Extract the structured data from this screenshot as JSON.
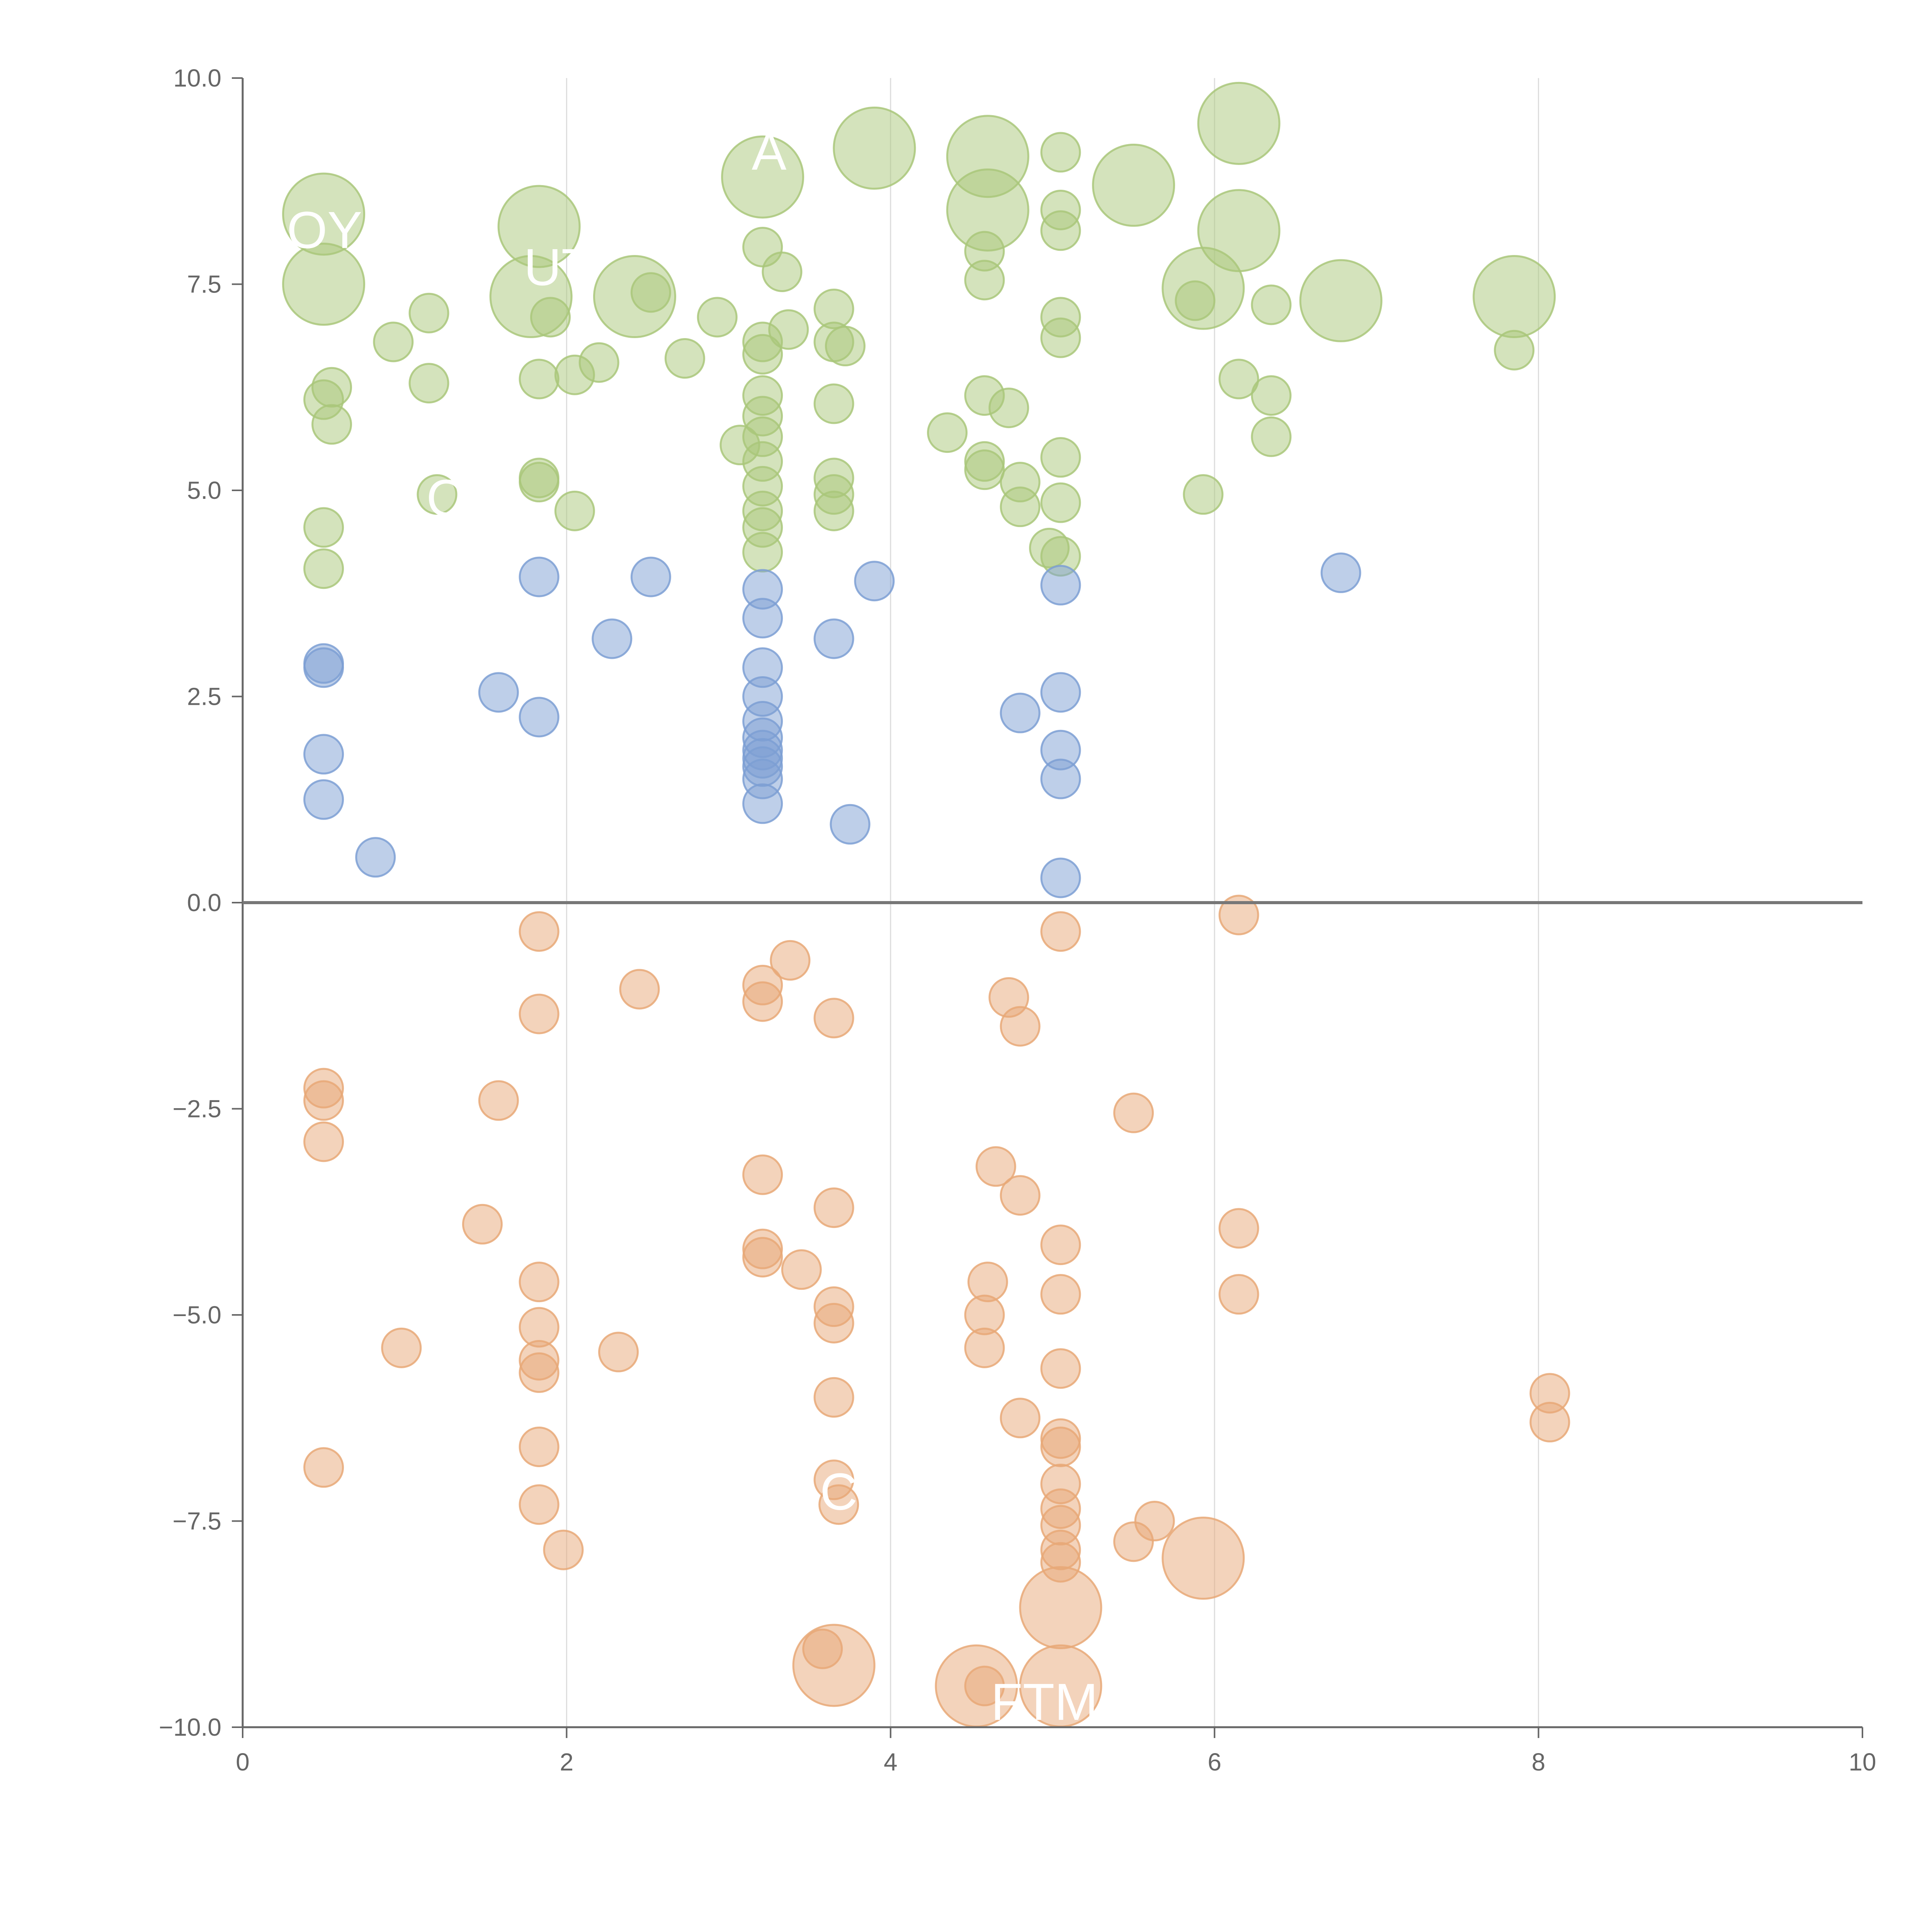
{
  "chart_data": {
    "type": "scatter",
    "title": "",
    "xlabel": "",
    "ylabel": "",
    "xlim": [
      0,
      10
    ],
    "ylim": [
      -10,
      10
    ],
    "x_ticks": [
      "0",
      "2",
      "4",
      "6",
      "8",
      "10"
    ],
    "y_ticks": [
      "10.0",
      "7.5",
      "5.0",
      "2.5",
      "0.0",
      "−2.5",
      "−5.0",
      "−7.5",
      "−10.0"
    ],
    "x_gridlines": [
      2,
      4,
      6,
      8
    ],
    "zero_line": 0,
    "series": [
      {
        "color": "#a9c77a",
        "points": [
          [
            0.5,
            8.35,
            2
          ],
          [
            0.5,
            7.5,
            2
          ],
          [
            0.55,
            6.25,
            1
          ],
          [
            0.5,
            6.1,
            1
          ],
          [
            0.55,
            5.8,
            1
          ],
          [
            0.5,
            4.55,
            1
          ],
          [
            0.5,
            4.05,
            1
          ],
          [
            0.93,
            6.8,
            1
          ],
          [
            1.15,
            7.15,
            1
          ],
          [
            1.15,
            6.3,
            1
          ],
          [
            1.2,
            4.95,
            1
          ],
          [
            1.83,
            8.2,
            2
          ],
          [
            1.78,
            7.35,
            2
          ],
          [
            1.9,
            7.1,
            1
          ],
          [
            1.83,
            6.35,
            1
          ],
          [
            1.83,
            5.15,
            1
          ],
          [
            1.83,
            5.1,
            1
          ],
          [
            2.05,
            6.4,
            1
          ],
          [
            2.05,
            4.75,
            1
          ],
          [
            2.2,
            6.55,
            1
          ],
          [
            2.42,
            7.35,
            2
          ],
          [
            2.52,
            7.4,
            1
          ],
          [
            2.73,
            6.6,
            1
          ],
          [
            2.93,
            7.1,
            1
          ],
          [
            3.07,
            5.55,
            1
          ],
          [
            3.21,
            8.8,
            2
          ],
          [
            3.21,
            7.95,
            1
          ],
          [
            3.33,
            7.65,
            1
          ],
          [
            3.21,
            6.8,
            1
          ],
          [
            3.21,
            6.65,
            1
          ],
          [
            3.21,
            6.15,
            1
          ],
          [
            3.21,
            5.9,
            1
          ],
          [
            3.21,
            5.65,
            1
          ],
          [
            3.21,
            5.35,
            1
          ],
          [
            3.21,
            5.05,
            1
          ],
          [
            3.21,
            4.75,
            1
          ],
          [
            3.21,
            4.55,
            1
          ],
          [
            3.21,
            4.25,
            1
          ],
          [
            3.37,
            6.95,
            1
          ],
          [
            3.65,
            7.2,
            1
          ],
          [
            3.65,
            6.8,
            1
          ],
          [
            3.72,
            6.75,
            1
          ],
          [
            3.65,
            6.05,
            1
          ],
          [
            3.65,
            5.15,
            1
          ],
          [
            3.65,
            4.95,
            1
          ],
          [
            3.65,
            4.75,
            1
          ],
          [
            3.9,
            9.15,
            2
          ],
          [
            4.35,
            5.7,
            1
          ],
          [
            4.6,
            9.05,
            2
          ],
          [
            4.6,
            8.4,
            2
          ],
          [
            4.58,
            7.9,
            1
          ],
          [
            4.58,
            7.55,
            1
          ],
          [
            4.58,
            6.15,
            1
          ],
          [
            4.73,
            6,
            1
          ],
          [
            4.58,
            5.35,
            1
          ],
          [
            4.58,
            5.25,
            1
          ],
          [
            4.8,
            5.1,
            1
          ],
          [
            4.8,
            4.8,
            1
          ],
          [
            4.98,
            4.3,
            1
          ],
          [
            5.05,
            9.1,
            1
          ],
          [
            5.05,
            8.4,
            1
          ],
          [
            5.05,
            8.15,
            1
          ],
          [
            5.05,
            7.1,
            1
          ],
          [
            5.05,
            6.85,
            1
          ],
          [
            5.05,
            5.4,
            1
          ],
          [
            5.05,
            4.85,
            1
          ],
          [
            5.05,
            4.2,
            1
          ],
          [
            5.5,
            8.7,
            2
          ],
          [
            5.93,
            7.45,
            2
          ],
          [
            5.88,
            7.3,
            1
          ],
          [
            5.93,
            4.95,
            1
          ],
          [
            6.15,
            9.45,
            2
          ],
          [
            6.15,
            8.15,
            2
          ],
          [
            6.15,
            6.35,
            1
          ],
          [
            6.35,
            7.25,
            1
          ],
          [
            6.35,
            6.15,
            1
          ],
          [
            6.35,
            5.65,
            1
          ],
          [
            6.78,
            7.3,
            2
          ],
          [
            7.85,
            7.35,
            2
          ],
          [
            7.85,
            6.7,
            1
          ]
        ]
      },
      {
        "color": "#7d9fd3",
        "points": [
          [
            0.5,
            2.9,
            1
          ],
          [
            0.5,
            2.85,
            1
          ],
          [
            0.5,
            1.8,
            1
          ],
          [
            0.5,
            1.25,
            1
          ],
          [
            0.82,
            0.55,
            1
          ],
          [
            1.58,
            2.55,
            1
          ],
          [
            1.83,
            3.95,
            1
          ],
          [
            1.83,
            2.25,
            1
          ],
          [
            2.28,
            3.2,
            1
          ],
          [
            2.52,
            3.95,
            1
          ],
          [
            3.21,
            3.8,
            1
          ],
          [
            3.21,
            3.45,
            1
          ],
          [
            3.21,
            2.85,
            1
          ],
          [
            3.21,
            2.5,
            1
          ],
          [
            3.21,
            2.2,
            1
          ],
          [
            3.21,
            2,
            1
          ],
          [
            3.21,
            1.85,
            1
          ],
          [
            3.21,
            1.75,
            1
          ],
          [
            3.21,
            1.65,
            1
          ],
          [
            3.21,
            1.5,
            1
          ],
          [
            3.21,
            1.2,
            1
          ],
          [
            3.65,
            3.2,
            1
          ],
          [
            3.75,
            0.95,
            1
          ],
          [
            3.9,
            3.9,
            1
          ],
          [
            4.8,
            2.3,
            1
          ],
          [
            5.05,
            3.85,
            1
          ],
          [
            5.05,
            2.55,
            1
          ],
          [
            5.05,
            1.85,
            1
          ],
          [
            5.05,
            1.5,
            1
          ],
          [
            5.05,
            0.3,
            1
          ],
          [
            6.78,
            4,
            1
          ]
        ]
      },
      {
        "color": "#e8a877",
        "points": [
          [
            0.5,
            -2.25,
            1
          ],
          [
            0.5,
            -2.4,
            1
          ],
          [
            0.5,
            -2.9,
            1
          ],
          [
            0.5,
            -6.85,
            1
          ],
          [
            0.98,
            -5.4,
            1
          ],
          [
            1.48,
            -3.9,
            1
          ],
          [
            1.58,
            -2.4,
            1
          ],
          [
            1.83,
            -0.35,
            1
          ],
          [
            1.83,
            -1.35,
            1
          ],
          [
            1.83,
            -4.6,
            1
          ],
          [
            1.83,
            -5.15,
            1
          ],
          [
            1.83,
            -5.55,
            1
          ],
          [
            1.83,
            -5.7,
            1
          ],
          [
            1.83,
            -6.6,
            1
          ],
          [
            1.83,
            -7.3,
            1
          ],
          [
            1.98,
            -7.85,
            1
          ],
          [
            2.32,
            -5.45,
            1
          ],
          [
            2.45,
            -1.05,
            1
          ],
          [
            3.21,
            -1,
            1
          ],
          [
            3.21,
            -1.2,
            1
          ],
          [
            3.21,
            -3.3,
            1
          ],
          [
            3.21,
            -4.2,
            1
          ],
          [
            3.21,
            -4.3,
            1
          ],
          [
            3.38,
            -0.7,
            1
          ],
          [
            3.45,
            -4.45,
            1
          ],
          [
            3.58,
            -9.05,
            1
          ],
          [
            3.65,
            -1.4,
            1
          ],
          [
            3.65,
            -3.7,
            1
          ],
          [
            3.65,
            -4.9,
            1
          ],
          [
            3.65,
            -5.1,
            1
          ],
          [
            3.65,
            -6,
            1
          ],
          [
            3.65,
            -7,
            1
          ],
          [
            3.68,
            -7.3,
            1
          ],
          [
            3.65,
            -9.25,
            2
          ],
          [
            4.53,
            -9.5,
            2
          ],
          [
            4.58,
            -5,
            1
          ],
          [
            4.58,
            -5.4,
            1
          ],
          [
            4.58,
            -9.5,
            1
          ],
          [
            4.6,
            -4.6,
            1
          ],
          [
            4.65,
            -3.2,
            1
          ],
          [
            4.73,
            -1.15,
            1
          ],
          [
            4.8,
            -1.5,
            1
          ],
          [
            4.8,
            -3.55,
            1
          ],
          [
            4.8,
            -6.25,
            1
          ],
          [
            5.05,
            -0.35,
            1
          ],
          [
            5.05,
            -4.15,
            1
          ],
          [
            5.05,
            -4.75,
            1
          ],
          [
            5.05,
            -5.65,
            1
          ],
          [
            5.05,
            -6.5,
            1
          ],
          [
            5.05,
            -6.6,
            1
          ],
          [
            5.05,
            -7.05,
            1
          ],
          [
            5.05,
            -7.35,
            1
          ],
          [
            5.05,
            -7.55,
            1
          ],
          [
            5.05,
            -7.85,
            1
          ],
          [
            5.05,
            -8,
            1
          ],
          [
            5.05,
            -8.55,
            2
          ],
          [
            5.05,
            -9.5,
            2
          ],
          [
            5.5,
            -2.55,
            1
          ],
          [
            5.5,
            -7.75,
            1
          ],
          [
            5.63,
            -7.5,
            1
          ],
          [
            5.93,
            -7.95,
            2
          ],
          [
            6.15,
            -0.15,
            1
          ],
          [
            6.15,
            -3.95,
            1
          ],
          [
            6.15,
            -4.75,
            1
          ],
          [
            8.07,
            -5.95,
            1
          ],
          [
            8.07,
            -6.3,
            1
          ]
        ]
      }
    ],
    "labels": [
      {
        "text": "OYI",
        "x": 0.55,
        "y": 8.15
      },
      {
        "text": "UT",
        "x": 1.95,
        "y": 7.7
      },
      {
        "text": "A",
        "x": 3.25,
        "y": 9.1
      },
      {
        "text": "C",
        "x": 1.25,
        "y": 4.9
      },
      {
        "text": "C",
        "x": 3.68,
        "y": -7.15
      },
      {
        "text": "FTM",
        "x": 4.95,
        "y": -9.7
      }
    ]
  }
}
